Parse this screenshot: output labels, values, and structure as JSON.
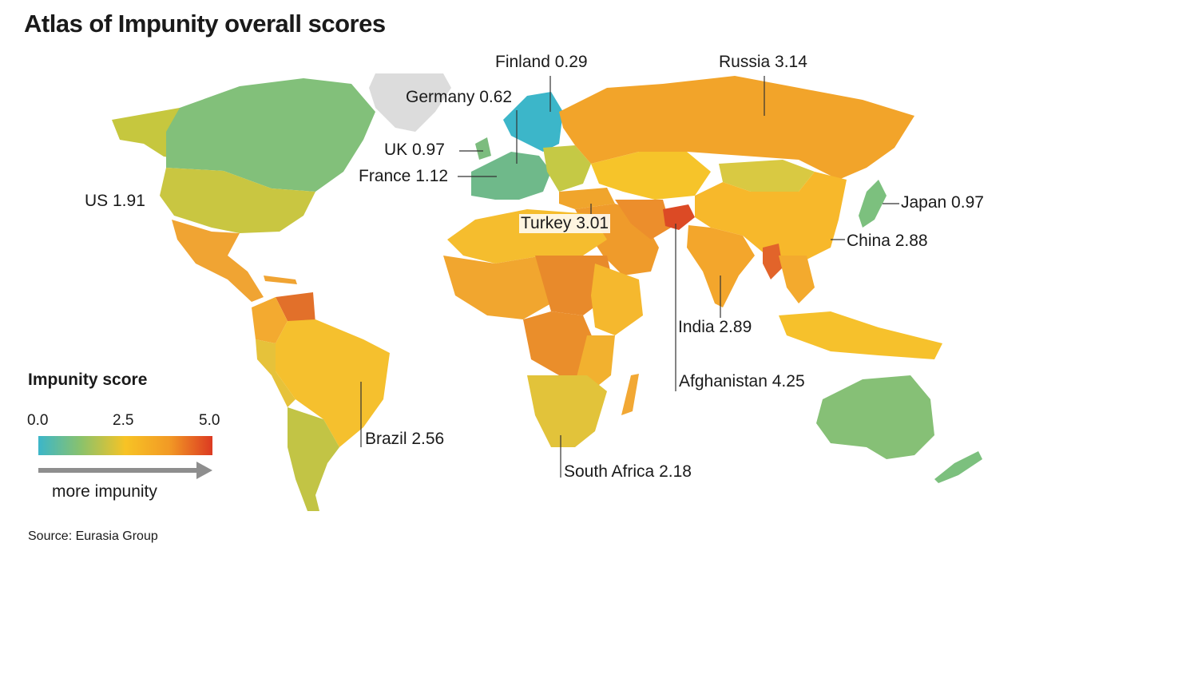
{
  "title": "Atlas of Impunity overall scores",
  "labels": {
    "finland": "Finland 0.29",
    "russia": "Russia 3.14",
    "germany": "Germany 0.62",
    "uk": "UK 0.97",
    "france": "France 1.12",
    "us": "US 1.91",
    "japan": "Japan 0.97",
    "turkey": "Turkey 3.01",
    "china": "China 2.88",
    "india": "India 2.89",
    "afghanistan": "Afghanistan 4.25",
    "brazil": "Brazil 2.56",
    "south_africa": "South Africa 2.18"
  },
  "countries": [
    {
      "name": "Finland",
      "score": 0.29
    },
    {
      "name": "Germany",
      "score": 0.62
    },
    {
      "name": "UK",
      "score": 0.97
    },
    {
      "name": "France",
      "score": 1.12
    },
    {
      "name": "US",
      "score": 1.91
    },
    {
      "name": "Japan",
      "score": 0.97
    },
    {
      "name": "Russia",
      "score": 3.14
    },
    {
      "name": "Turkey",
      "score": 3.01
    },
    {
      "name": "China",
      "score": 2.88
    },
    {
      "name": "India",
      "score": 2.89
    },
    {
      "name": "Afghanistan",
      "score": 4.25
    },
    {
      "name": "Brazil",
      "score": 2.56
    },
    {
      "name": "South Africa",
      "score": 2.18
    }
  ],
  "legend": {
    "title": "Impunity score",
    "ticks": [
      "0.0",
      "2.5",
      "5.0"
    ],
    "range": [
      0,
      5
    ],
    "colors": [
      "#3cb6c9",
      "#8cc26a",
      "#f7c325",
      "#f29a25",
      "#dc3a22"
    ],
    "arrow_label": "more impunity"
  },
  "source": "Source: Eurasia Group",
  "no_data_color": "#dcdcdc"
}
